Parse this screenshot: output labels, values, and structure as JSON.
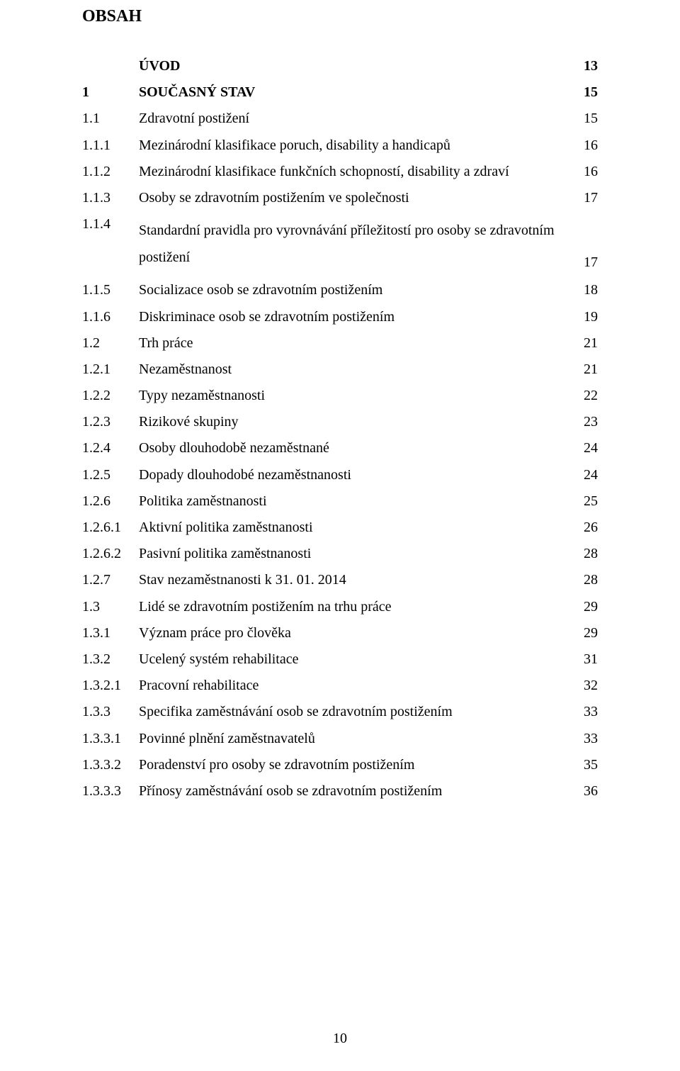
{
  "heading": "OBSAH",
  "page_number": "10",
  "styles": {
    "font_family": "Times New Roman",
    "text_color": "#000000",
    "background_color": "#ffffff",
    "heading_fontsize_pt": 18,
    "body_fontsize_pt": 15
  },
  "toc": [
    {
      "num": "",
      "title": "ÚVOD",
      "page": "13",
      "bold": true,
      "wrap": false
    },
    {
      "num": "1",
      "title": "SOUČASNÝ STAV",
      "page": "15",
      "bold": true,
      "wrap": false
    },
    {
      "num": "1.1",
      "title": "Zdravotní postižení",
      "page": "15",
      "bold": false,
      "wrap": false
    },
    {
      "num": "1.1.1",
      "title": "Mezinárodní klasifikace poruch, disability a handicapů",
      "page": "16",
      "bold": false,
      "wrap": false
    },
    {
      "num": "1.1.2",
      "title": "Mezinárodní klasifikace funkčních schopností, disability a zdraví",
      "page": "16",
      "bold": false,
      "wrap": false
    },
    {
      "num": "1.1.3",
      "title": "Osoby se zdravotním postižením ve společnosti",
      "page": "17",
      "bold": false,
      "wrap": false
    },
    {
      "num": "1.1.4",
      "title": "Standardní pravidla pro vyrovnávání příležitostí pro osoby se zdravotním postižení",
      "page": "17",
      "bold": false,
      "wrap": true
    },
    {
      "num": "1.1.5",
      "title": "Socializace osob se zdravotním postižením",
      "page": "18",
      "bold": false,
      "wrap": false
    },
    {
      "num": "1.1.6",
      "title": "Diskriminace osob se zdravotním postižením",
      "page": "19",
      "bold": false,
      "wrap": false
    },
    {
      "num": "1.2",
      "title": "Trh práce",
      "page": "21",
      "bold": false,
      "wrap": false
    },
    {
      "num": "1.2.1",
      "title": "Nezaměstnanost",
      "page": "21",
      "bold": false,
      "wrap": false
    },
    {
      "num": "1.2.2",
      "title": "Typy nezaměstnanosti",
      "page": "22",
      "bold": false,
      "wrap": false
    },
    {
      "num": "1.2.3",
      "title": "Rizikové skupiny",
      "page": "23",
      "bold": false,
      "wrap": false
    },
    {
      "num": "1.2.4",
      "title": "Osoby dlouhodobě nezaměstnané",
      "page": "24",
      "bold": false,
      "wrap": false
    },
    {
      "num": "1.2.5",
      "title": "Dopady dlouhodobé nezaměstnanosti",
      "page": "24",
      "bold": false,
      "wrap": false
    },
    {
      "num": "1.2.6",
      "title": "Politika zaměstnanosti",
      "page": "25",
      "bold": false,
      "wrap": false
    },
    {
      "num": "1.2.6.1",
      "title": "Aktivní politika zaměstnanosti",
      "page": "26",
      "bold": false,
      "wrap": false
    },
    {
      "num": "1.2.6.2",
      "title": "Pasivní politika zaměstnanosti",
      "page": "28",
      "bold": false,
      "wrap": false
    },
    {
      "num": "1.2.7",
      "title": "Stav nezaměstnanosti k 31. 01. 2014",
      "page": "28",
      "bold": false,
      "wrap": false
    },
    {
      "num": "1.3",
      "title": "Lidé se zdravotním postižením na trhu práce",
      "page": "29",
      "bold": false,
      "wrap": false
    },
    {
      "num": "1.3.1",
      "title": "Význam práce pro člověka",
      "page": "29",
      "bold": false,
      "wrap": false
    },
    {
      "num": "1.3.2",
      "title": "Ucelený systém rehabilitace",
      "page": "31",
      "bold": false,
      "wrap": false
    },
    {
      "num": "1.3.2.1",
      "title": "Pracovní rehabilitace",
      "page": "32",
      "bold": false,
      "wrap": false
    },
    {
      "num": "1.3.3",
      "title": "Specifika zaměstnávání osob se zdravotním postižením",
      "page": "33",
      "bold": false,
      "wrap": false
    },
    {
      "num": "1.3.3.1",
      "title": "Povinné plnění zaměstnavatelů",
      "page": "33",
      "bold": false,
      "wrap": false
    },
    {
      "num": "1.3.3.2",
      "title": "Poradenství pro osoby se zdravotním postižením",
      "page": "35",
      "bold": false,
      "wrap": false
    },
    {
      "num": "1.3.3.3",
      "title": "Přínosy zaměstnávání osob se zdravotním postižením",
      "page": "36",
      "bold": false,
      "wrap": false
    }
  ]
}
